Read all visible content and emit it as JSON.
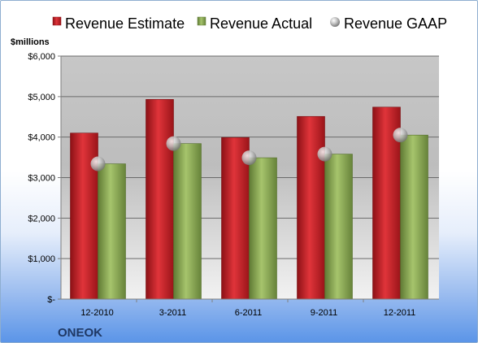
{
  "chart_data": {
    "type": "bar",
    "categories": [
      "12-2010",
      "3-2011",
      "6-2011",
      "9-2011",
      "12-2011"
    ],
    "series": [
      {
        "name": "Revenue Estimate",
        "kind": "bar",
        "color": "#c0262c",
        "values": [
          4100,
          4930,
          3990,
          4510,
          4740
        ]
      },
      {
        "name": "Revenue Actual",
        "kind": "bar",
        "color": "#8fae58",
        "values": [
          3340,
          3840,
          3490,
          3580,
          4050
        ]
      },
      {
        "name": "Revenue GAAP",
        "kind": "marker",
        "color": "#b8b8b8",
        "values": [
          3340,
          3840,
          3490,
          3580,
          4050
        ]
      }
    ],
    "ylim": [
      0,
      6000
    ],
    "yticks": [
      0,
      1000,
      2000,
      3000,
      4000,
      5000,
      6000
    ],
    "ytick_labels": [
      "$-",
      "$1,000",
      "$2,000",
      "$3,000",
      "$4,000",
      "$5,000",
      "$6,000"
    ],
    "unit_label": "$millions",
    "company": "ONEOK",
    "grid": true,
    "legend_position": "top"
  }
}
